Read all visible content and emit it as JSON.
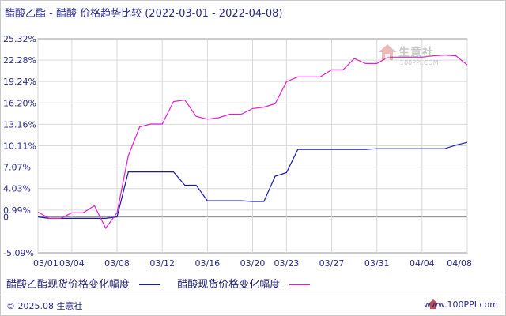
{
  "header": {
    "title": "醋酸乙酯 - 醋酸 价格趋势比较",
    "date_range": "(2022-03-01 - 2022-04-08)"
  },
  "watermark": {
    "name": "生意社",
    "url": "100PPI.COM"
  },
  "footer": {
    "copyright": "© 2025.08 生意社",
    "site": "www.100PPI.com"
  },
  "colors": {
    "series1": "#1a1aaa",
    "series2": "#e020d0",
    "grid": "#d9d9d9",
    "axis": "#555555",
    "tick_text": "#2a2a8a"
  },
  "chart_data": {
    "type": "line",
    "title": "醋酸乙酯 - 醋酸 价格趋势比较",
    "xlabel": "",
    "ylabel": "",
    "ylim": [
      -5.09,
      25.32
    ],
    "grid": true,
    "legend_position": "bottom",
    "y_ticks": [
      -5.09,
      0,
      0.99,
      4.03,
      7.07,
      10.11,
      13.16,
      16.2,
      19.24,
      22.28,
      25.32
    ],
    "y_tick_labels": [
      "-5.09%",
      "0",
      "0.99%",
      "4.03%",
      "7.07%",
      "10.11%",
      "13.16%",
      "16.20%",
      "19.24%",
      "22.28%",
      "25.32%"
    ],
    "x_ticks": [
      "03/01",
      "03/04",
      "03/08",
      "03/12",
      "03/16",
      "03/20",
      "03/23",
      "03/27",
      "03/31",
      "04/04",
      "04/08"
    ],
    "x_range": [
      0,
      38
    ],
    "x_tick_positions": [
      0,
      3,
      7,
      11,
      15,
      19,
      22,
      26,
      30,
      34,
      38
    ],
    "series": [
      {
        "name": "醋酸乙酯现货价格变化幅度",
        "points": [
          [
            0,
            0
          ],
          [
            1,
            -0.2
          ],
          [
            2,
            -0.2
          ],
          [
            3,
            -0.2
          ],
          [
            4,
            -0.2
          ],
          [
            5,
            -0.2
          ],
          [
            6,
            -0.2
          ],
          [
            7,
            0
          ],
          [
            8,
            6.4
          ],
          [
            9,
            6.4
          ],
          [
            10,
            6.4
          ],
          [
            11,
            6.4
          ],
          [
            12,
            6.4
          ],
          [
            13,
            4.5
          ],
          [
            14,
            4.5
          ],
          [
            15,
            2.3
          ],
          [
            16,
            2.3
          ],
          [
            17,
            2.3
          ],
          [
            18,
            2.3
          ],
          [
            19,
            2.2
          ],
          [
            20,
            2.2
          ],
          [
            21,
            5.8
          ],
          [
            22,
            6.3
          ],
          [
            23,
            9.6
          ],
          [
            24,
            9.6
          ],
          [
            25,
            9.6
          ],
          [
            26,
            9.6
          ],
          [
            27,
            9.6
          ],
          [
            28,
            9.6
          ],
          [
            29,
            9.6
          ],
          [
            30,
            9.7
          ],
          [
            31,
            9.7
          ],
          [
            32,
            9.7
          ],
          [
            33,
            9.7
          ],
          [
            34,
            9.7
          ],
          [
            35,
            9.7
          ],
          [
            36,
            9.7
          ],
          [
            37,
            10.2
          ],
          [
            38,
            10.6
          ]
        ]
      },
      {
        "name": "醋酸现货价格变化幅度",
        "points": [
          [
            0,
            0.7
          ],
          [
            1,
            -0.2
          ],
          [
            2,
            -0.2
          ],
          [
            3,
            0.6
          ],
          [
            4,
            0.6
          ],
          [
            5,
            1.6
          ],
          [
            6,
            -1.6
          ],
          [
            7,
            0.6
          ],
          [
            8,
            8.7
          ],
          [
            9,
            12.8
          ],
          [
            10,
            13.2
          ],
          [
            11,
            13.2
          ],
          [
            12,
            16.4
          ],
          [
            13,
            16.6
          ],
          [
            14,
            14.3
          ],
          [
            15,
            13.9
          ],
          [
            16,
            14.1
          ],
          [
            17,
            14.6
          ],
          [
            18,
            14.6
          ],
          [
            19,
            15.4
          ],
          [
            20,
            15.6
          ],
          [
            21,
            16.1
          ],
          [
            22,
            19.2
          ],
          [
            23,
            19.9
          ],
          [
            24,
            19.9
          ],
          [
            25,
            19.9
          ],
          [
            26,
            20.9
          ],
          [
            27,
            20.9
          ],
          [
            28,
            22.5
          ],
          [
            29,
            21.8
          ],
          [
            30,
            21.8
          ],
          [
            31,
            22.7
          ],
          [
            32,
            22.7
          ],
          [
            33,
            22.7
          ],
          [
            34,
            22.7
          ],
          [
            35,
            22.9
          ],
          [
            36,
            23.0
          ],
          [
            37,
            22.9
          ],
          [
            38,
            21.6
          ]
        ]
      }
    ]
  },
  "legend": [
    {
      "label": "醋酸乙酯现货价格变化幅度"
    },
    {
      "label": "醋酸现货价格变化幅度"
    }
  ]
}
